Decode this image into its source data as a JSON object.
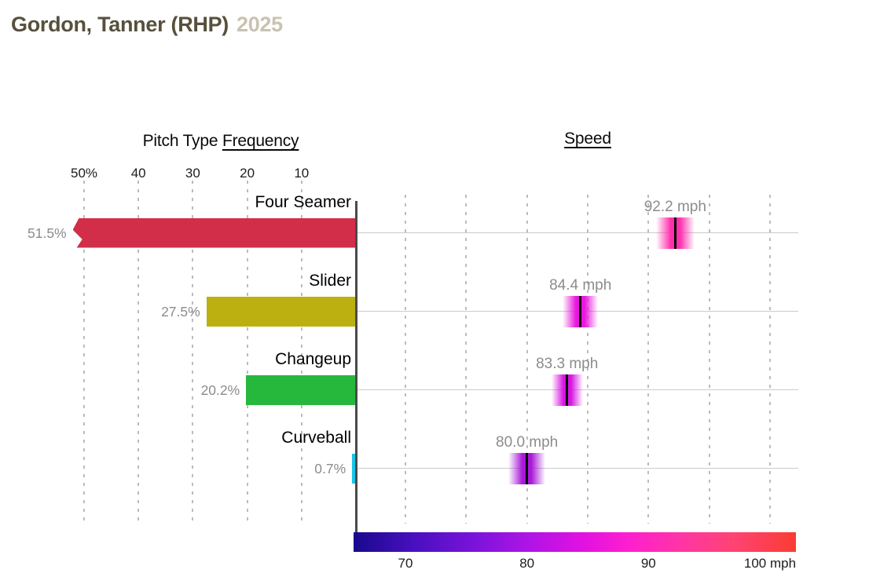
{
  "header": {
    "player_name": "Gordon, Tanner (RHP)",
    "season": "2025"
  },
  "frequency_panel": {
    "heading_plain": "Pitch Type ",
    "heading_link": "Frequency",
    "axis_tick_labels": [
      "50%",
      "40",
      "30",
      "20",
      "10"
    ],
    "axis_tick_values": [
      50,
      40,
      30,
      20,
      10
    ]
  },
  "speed_panel": {
    "heading_link": "Speed",
    "gridline_values": [
      70,
      75,
      80,
      85,
      90,
      95,
      100
    ]
  },
  "chart_data": {
    "type": "bar",
    "title": "Gordon, Tanner (RHP) 2025",
    "description": "Pitch arsenal chart: horizontal bars show pitch type frequency (%), gradient markers show pitch speed distribution (mph) with median line",
    "categories": [
      "Four Seamer",
      "Slider",
      "Changeup",
      "Curveball"
    ],
    "series": [
      {
        "name": "Pitch Type Frequency",
        "unit": "%",
        "values": [
          51.5,
          27.5,
          20.2,
          0.7
        ],
        "labels": [
          "51.5%",
          "27.5%",
          "20.2%",
          "0.7%"
        ]
      },
      {
        "name": "Speed",
        "unit": "mph",
        "values": [
          92.2,
          84.4,
          83.3,
          80.0
        ],
        "labels": [
          "92.2 mph",
          "84.4 mph",
          "83.3 mph",
          "80.0 mph"
        ]
      }
    ],
    "bar_colors": [
      "#d22e4a",
      "#bcb011",
      "#26b83d",
      "#18c5e8"
    ],
    "speed_marker_colors": [
      "#ff2fae",
      "#e917dd",
      "#d816e2",
      "#a81ad8"
    ],
    "speed_spread_mph": [
      3.2,
      2.9,
      2.6,
      3.0
    ],
    "frequency_axis": {
      "ticks": [
        50,
        40,
        30,
        20,
        10
      ],
      "max": 50,
      "overflow_categories": [
        "Four Seamer"
      ]
    },
    "speed_axis": {
      "ticks": [
        70,
        80,
        90,
        100
      ],
      "tick_labels": [
        "70",
        "80",
        "90",
        "100 mph"
      ],
      "gridline_step": 5,
      "range": [
        65.7,
        102.1
      ]
    },
    "colorbar": {
      "stops": [
        "#18098c",
        "#7d13dc",
        "#e211e1",
        "#ff35a5",
        "#fa3c33"
      ],
      "tick_labels": [
        "70",
        "80",
        "90",
        "100 mph"
      ]
    },
    "grid": "dashed-vertical",
    "legend": "none"
  }
}
